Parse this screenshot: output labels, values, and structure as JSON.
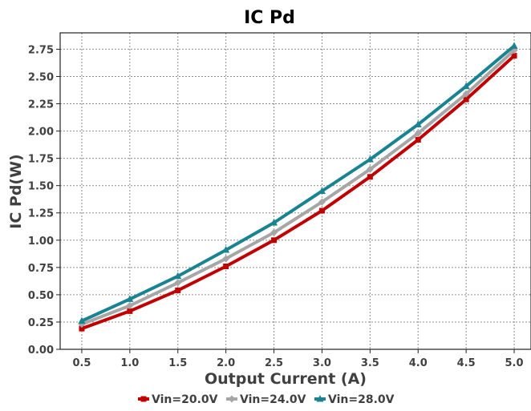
{
  "chart_data": {
    "type": "line",
    "title": "IC Pd",
    "xlabel": "Output Current (A)",
    "ylabel": "IC Pd(W)",
    "x": [
      0.5,
      1.0,
      1.5,
      2.0,
      2.5,
      3.0,
      3.5,
      4.0,
      4.5,
      5.0
    ],
    "x_tick_labels": [
      "0.5",
      "1.0",
      "1.5",
      "2.0",
      "2.5",
      "3.0",
      "3.5",
      "4.0",
      "4.5",
      "5.0"
    ],
    "y_ticks": [
      0.0,
      0.25,
      0.5,
      0.75,
      1.0,
      1.25,
      1.5,
      1.75,
      2.0,
      2.25,
      2.5,
      2.75
    ],
    "y_tick_labels": [
      "0.00",
      "0.25",
      "0.50",
      "0.75",
      "1.00",
      "1.25",
      "1.50",
      "1.75",
      "2.00",
      "2.25",
      "2.50",
      "2.75"
    ],
    "xlim": [
      0.275,
      5.175
    ],
    "ylim": [
      0.0,
      2.9
    ],
    "grid": true,
    "legend_position": "bottom-center",
    "series": [
      {
        "name": "Vin=20.0V",
        "color": "#c00000",
        "marker": "square",
        "values": [
          0.19,
          0.35,
          0.54,
          0.76,
          1.0,
          1.27,
          1.58,
          1.92,
          2.29,
          2.69
        ]
      },
      {
        "name": "Vin=24.0V",
        "color": "#a6a6a6",
        "marker": "diamond",
        "values": [
          0.23,
          0.4,
          0.61,
          0.83,
          1.07,
          1.35,
          1.65,
          1.98,
          2.34,
          2.74
        ]
      },
      {
        "name": "Vin=28.0V",
        "color": "#1a8392",
        "marker": "triangle",
        "values": [
          0.26,
          0.46,
          0.67,
          0.91,
          1.16,
          1.45,
          1.74,
          2.06,
          2.41,
          2.78
        ]
      }
    ]
  }
}
